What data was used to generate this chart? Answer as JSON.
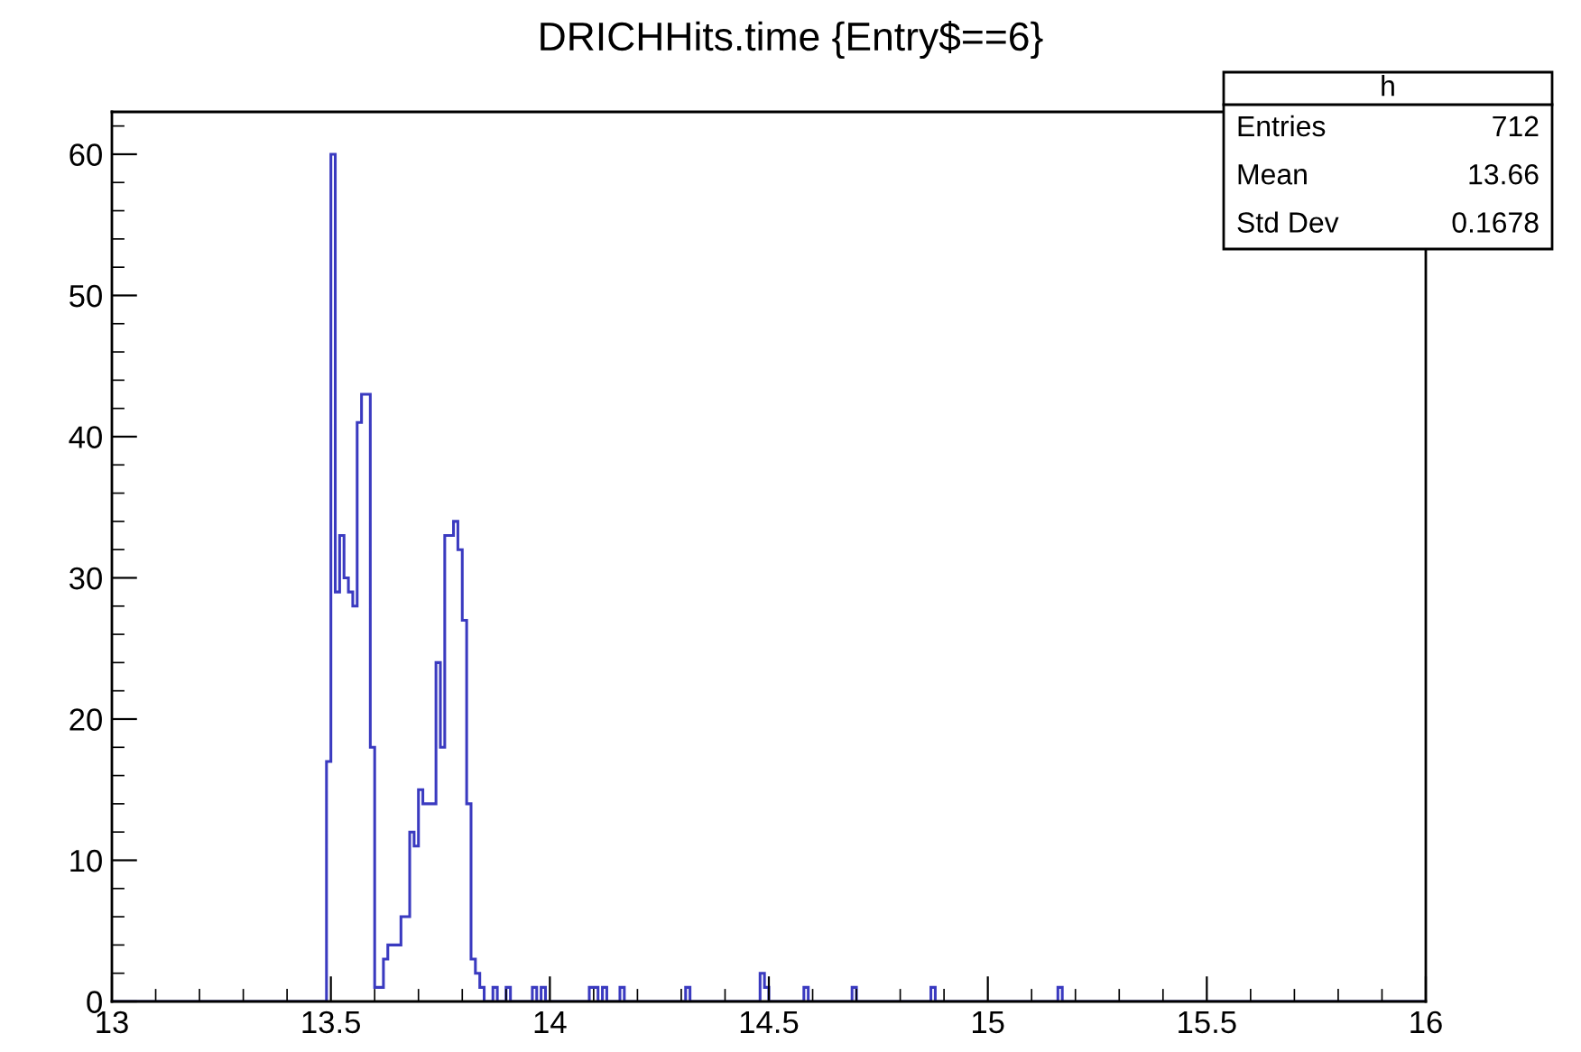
{
  "chart_data": {
    "type": "histogram",
    "title": "DRICHHits.time {Entry$==6}",
    "bins": [
      13,
      13.49,
      13.5,
      13.51,
      13.52,
      13.53,
      13.54,
      13.55,
      13.56,
      13.57,
      13.58,
      13.59,
      13.6,
      13.61,
      13.62,
      13.63,
      13.64,
      13.65,
      13.66,
      13.67,
      13.68,
      13.69,
      13.7,
      13.71,
      13.72,
      13.73,
      13.74,
      13.75,
      13.76,
      13.77,
      13.78,
      13.79,
      13.8,
      13.81,
      13.82,
      13.83,
      13.84,
      13.85,
      13.87,
      13.88,
      13.9,
      13.91,
      13.96,
      13.97,
      13.98,
      13.99,
      14.09,
      14.1,
      14.11,
      14.12,
      14.13,
      14.16,
      14.17,
      14.31,
      14.32,
      14.48,
      14.49,
      14.5,
      14.58,
      14.59,
      14.69,
      14.7,
      14.87,
      14.88,
      15.16,
      15.17,
      16
    ],
    "values": [
      0,
      17,
      60,
      29,
      33,
      30,
      29,
      28,
      41,
      43,
      43,
      18,
      1,
      1,
      3,
      4,
      4,
      4,
      6,
      6,
      12,
      11,
      15,
      14,
      14,
      14,
      24,
      18,
      33,
      33,
      34,
      32,
      27,
      14,
      3,
      2,
      1,
      0,
      1,
      0,
      1,
      0,
      1,
      0,
      1,
      0,
      1,
      1,
      0,
      1,
      0,
      1,
      0,
      1,
      0,
      2,
      1,
      0,
      1,
      0,
      1,
      0,
      1,
      0,
      1,
      0
    ],
    "color": "#3a3ac0",
    "xlim": [
      13,
      16
    ],
    "xticks": [
      13,
      13.5,
      14,
      14.5,
      15,
      15.5,
      16
    ],
    "ylim": [
      0,
      63
    ],
    "yticks": [
      0,
      10,
      20,
      30,
      40,
      50,
      60
    ],
    "grid": false,
    "legend": false,
    "annotations": [
      "h",
      "Entries",
      "712",
      "Mean",
      "13.66",
      "Std Dev",
      "0.1678"
    ]
  }
}
